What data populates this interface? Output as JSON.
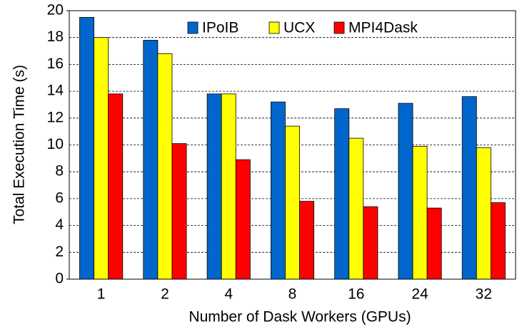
{
  "chart_data": {
    "type": "bar",
    "xlabel": "Number of Dask Workers (GPUs)",
    "ylabel": "Total Execution Time (s)",
    "categories": [
      "1",
      "2",
      "4",
      "8",
      "16",
      "24",
      "32"
    ],
    "series": [
      {
        "name": "IPoIB",
        "color": "#0066cc",
        "values": [
          19.5,
          17.8,
          13.8,
          13.2,
          12.7,
          13.1,
          13.6
        ]
      },
      {
        "name": "UCX",
        "color": "#ffff00",
        "values": [
          18.0,
          16.8,
          13.8,
          11.4,
          10.5,
          9.9,
          9.8
        ]
      },
      {
        "name": "MPI4Dask",
        "color": "#ff0000",
        "values": [
          13.8,
          10.1,
          8.9,
          5.8,
          5.4,
          5.3,
          5.7
        ]
      }
    ],
    "ylim": [
      0,
      20
    ],
    "yticks": [
      0,
      2,
      4,
      6,
      8,
      10,
      12,
      14,
      16,
      18,
      20
    ],
    "grid": true
  }
}
